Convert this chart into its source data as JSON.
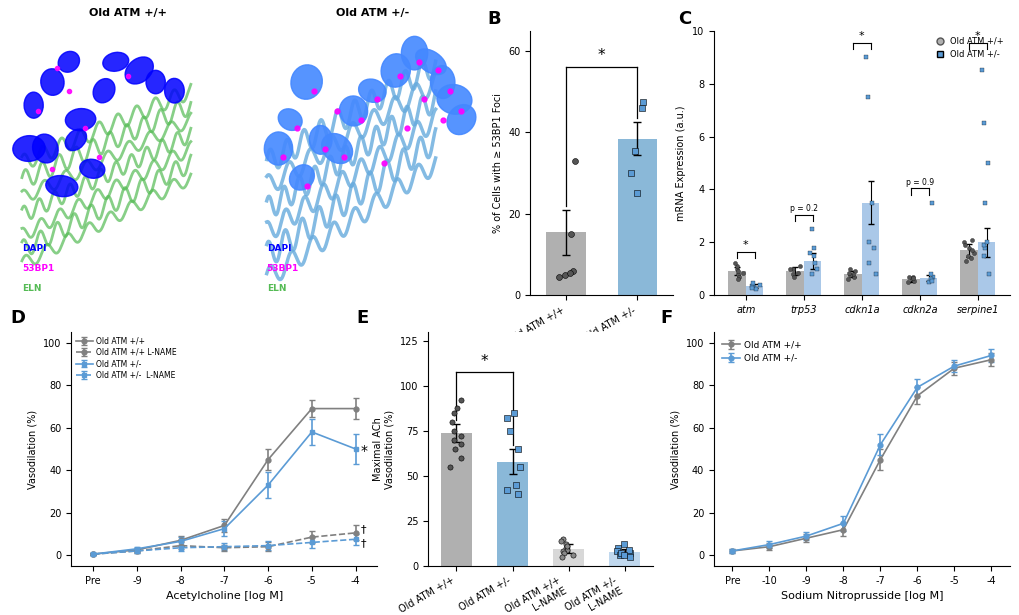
{
  "gray_color": "#808080",
  "blue_color": "#5b9bd5",
  "light_gray": "#c8c8c8",
  "light_blue": "#aac8e8",
  "dark_gray": "#555555",
  "panel_B": {
    "categories": [
      "Old ATM +/+",
      "Old ATM +/-"
    ],
    "means": [
      15.5,
      38.5
    ],
    "sems": [
      5.5,
      4.0
    ],
    "bar_colors": [
      "#b0b0b0",
      "#8ab8d8"
    ],
    "ylabel": "% of Cells with ≥ 53BP1 Foci",
    "ylim": [
      0,
      65
    ],
    "yticks": [
      0,
      20,
      40,
      60
    ],
    "scatter_gray": [
      15.0,
      5.0,
      6.0,
      5.5,
      4.5,
      33.0
    ],
    "scatter_blue": [
      46.0,
      47.5,
      30.0,
      25.0,
      35.5
    ]
  },
  "panel_C": {
    "genes": [
      "atm",
      "trp53",
      "cdkn1a",
      "cdkn2a",
      "serpine1"
    ],
    "gray_means": [
      0.9,
      0.9,
      0.8,
      0.6,
      1.7
    ],
    "gray_sems": [
      0.15,
      0.15,
      0.12,
      0.1,
      0.25
    ],
    "blue_means": [
      0.35,
      1.3,
      3.5,
      0.65,
      2.0
    ],
    "blue_sems": [
      0.08,
      0.3,
      0.8,
      0.12,
      0.55
    ],
    "ylabel": "mRNA Expression (a.u.)",
    "ylim": [
      0,
      10
    ],
    "yticks": [
      0,
      2,
      4,
      6,
      8,
      10
    ],
    "p_trp53": "p = 0.2",
    "p_cdkn2a": "p = 0.9"
  },
  "panel_D": {
    "x_labels": [
      "Pre",
      "-9",
      "-8",
      "-7",
      "-6",
      "-5",
      "-4"
    ],
    "x_vals": [
      0,
      1,
      2,
      3,
      4,
      5,
      6
    ],
    "gray_solid": [
      0.5,
      2.5,
      7.0,
      14.0,
      45.0,
      69.0,
      69.0
    ],
    "gray_solid_err": [
      0.4,
      1.0,
      2.0,
      3.0,
      5.0,
      4.0,
      5.0
    ],
    "gray_dashed": [
      0.5,
      2.0,
      4.5,
      3.5,
      4.0,
      8.5,
      10.5
    ],
    "gray_dashed_err": [
      0.3,
      0.8,
      1.5,
      1.5,
      2.0,
      3.0,
      3.5
    ],
    "blue_solid": [
      0.5,
      3.0,
      6.5,
      12.5,
      33.0,
      58.0,
      50.0
    ],
    "blue_solid_err": [
      0.4,
      1.0,
      2.0,
      3.5,
      6.0,
      6.0,
      7.0
    ],
    "blue_dashed": [
      0.5,
      2.0,
      3.5,
      4.0,
      4.5,
      6.0,
      7.5
    ],
    "blue_dashed_err": [
      0.3,
      0.8,
      1.5,
      1.5,
      2.0,
      2.5,
      2.5
    ],
    "ylabel": "Vasodilation (%)",
    "xlabel": "Acetylcholine [log M]",
    "ylim": [
      -5,
      105
    ],
    "yticks": [
      0,
      20,
      40,
      60,
      80,
      100
    ]
  },
  "panel_E": {
    "means": [
      74.0,
      58.0,
      9.5,
      7.5
    ],
    "sems": [
      5.0,
      7.0,
      2.5,
      2.0
    ],
    "bar_colors": [
      "#b0b0b0",
      "#8ab8d8",
      "#d8d8d8",
      "#c0d8ee"
    ],
    "ylabel": "Maximal ACh\nVasodilation (%)",
    "ylim": [
      0,
      130
    ],
    "yticks": [
      0,
      25,
      50,
      75,
      100,
      125
    ],
    "scatter_0": [
      92,
      88,
      80,
      75,
      70,
      65,
      60,
      55,
      85,
      72,
      68
    ],
    "scatter_1": [
      85,
      82,
      75,
      65,
      55,
      45,
      42,
      40
    ],
    "scatter_2": [
      15,
      12,
      10,
      9,
      8,
      7,
      6,
      5,
      11,
      14
    ],
    "scatter_3": [
      12,
      10,
      8,
      7,
      6,
      5,
      7,
      9,
      6
    ]
  },
  "panel_F": {
    "x_labels": [
      "Pre",
      "-10",
      "-9",
      "-8",
      "-7",
      "-6",
      "-5",
      "-4"
    ],
    "x_vals": [
      0,
      1,
      2,
      3,
      4,
      5,
      6,
      7
    ],
    "gray_solid": [
      2.0,
      4.0,
      8.0,
      12.0,
      45.0,
      75.0,
      88.0,
      92.0
    ],
    "gray_solid_err": [
      1.0,
      1.5,
      2.0,
      3.0,
      5.0,
      4.0,
      3.0,
      3.0
    ],
    "blue_solid": [
      2.0,
      5.0,
      9.0,
      15.0,
      52.0,
      79.0,
      89.0,
      94.0
    ],
    "blue_solid_err": [
      1.0,
      1.5,
      2.0,
      3.5,
      5.0,
      4.0,
      3.0,
      3.0
    ],
    "ylabel": "Vasodilation (%)",
    "xlabel": "Sodium Nitroprusside [log M]",
    "ylim": [
      -5,
      105
    ],
    "yticks": [
      0,
      20,
      40,
      60,
      80,
      100
    ]
  }
}
